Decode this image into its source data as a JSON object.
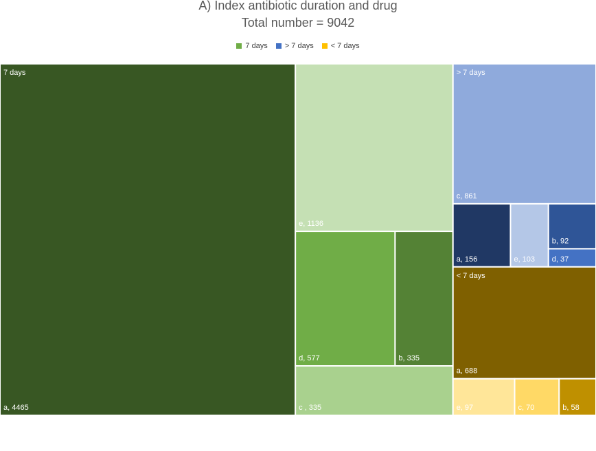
{
  "chart_data": {
    "type": "treemap",
    "title": "A) Index antibiotic duration and drug",
    "subtitle": "Total number = 9042",
    "legend": {
      "placement": "top",
      "entries": [
        {
          "label": "7 days",
          "color": "#70ad47"
        },
        {
          "label": "> 7 days",
          "color": "#4472c4"
        },
        {
          "label": "< 7 days",
          "color": "#ffc000"
        }
      ]
    },
    "groups": [
      {
        "name": "7 days",
        "children": [
          {
            "label": "a, 4465",
            "value": 4465,
            "color": "#385723"
          },
          {
            "label": "e, 1136",
            "value": 1136,
            "color": "#c5e0b4"
          },
          {
            "label": "d, 577",
            "value": 577,
            "color": "#70ad47"
          },
          {
            "label": "b, 335",
            "value": 335,
            "color": "#548235"
          },
          {
            "label": "c , 335",
            "value": 335,
            "color": "#a9d18e"
          }
        ]
      },
      {
        "name": "> 7 days",
        "children": [
          {
            "label": "c, 861",
            "value": 861,
            "color": "#8faadc"
          },
          {
            "label": "a, 156",
            "value": 156,
            "color": "#203864"
          },
          {
            "label": "e, 103",
            "value": 103,
            "color": "#b4c7e7"
          },
          {
            "label": "b, 92",
            "value": 92,
            "color": "#2f5597"
          },
          {
            "label": "d, 37",
            "value": 37,
            "color": "#4472c4"
          }
        ]
      },
      {
        "name": "< 7 days",
        "children": [
          {
            "label": "a, 688",
            "value": 688,
            "color": "#7f6000"
          },
          {
            "label": "e, 97",
            "value": 97,
            "color": "#ffe699"
          },
          {
            "label": "c, 70",
            "value": 70,
            "color": "#ffd966"
          },
          {
            "label": "b, 58",
            "value": 58,
            "color": "#bf9000"
          }
        ]
      }
    ]
  }
}
